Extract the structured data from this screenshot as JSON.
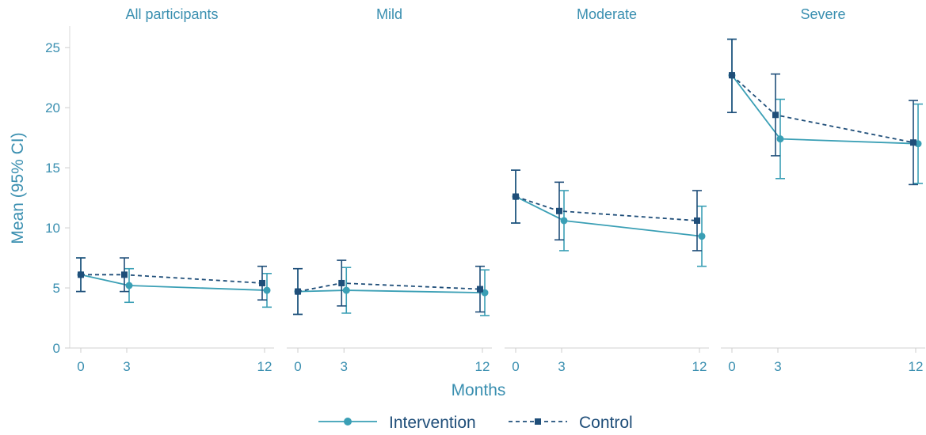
{
  "chart_data": {
    "type": "line",
    "ylabel": "Mean (95% CI)",
    "xlabel": "Months",
    "ylim": [
      0,
      26
    ],
    "yticks": [
      0,
      5,
      10,
      15,
      20,
      25
    ],
    "xticks": [
      0,
      3,
      12
    ],
    "grid": false,
    "legend_placement": "bottom",
    "colors": {
      "Intervention": "#3a9fb5",
      "Control": "#1f4e79",
      "axis_text": "#3a8fb0"
    },
    "series_names": [
      "Intervention",
      "Control"
    ],
    "panels": [
      {
        "title": "All participants",
        "series": [
          {
            "name": "Intervention",
            "x": [
              0,
              3,
              12
            ],
            "values": [
              6.1,
              5.2,
              4.8
            ],
            "ci_low": [
              4.7,
              3.8,
              3.4
            ],
            "ci_high": [
              7.5,
              6.6,
              6.2
            ]
          },
          {
            "name": "Control",
            "x": [
              0,
              3,
              12
            ],
            "values": [
              6.1,
              6.1,
              5.4
            ],
            "ci_low": [
              4.7,
              4.7,
              4.0
            ],
            "ci_high": [
              7.5,
              7.5,
              6.8
            ]
          }
        ]
      },
      {
        "title": "Mild",
        "series": [
          {
            "name": "Intervention",
            "x": [
              0,
              3,
              12
            ],
            "values": [
              4.7,
              4.8,
              4.6
            ],
            "ci_low": [
              2.8,
              2.9,
              2.7
            ],
            "ci_high": [
              6.6,
              6.7,
              6.5
            ]
          },
          {
            "name": "Control",
            "x": [
              0,
              3,
              12
            ],
            "values": [
              4.7,
              5.4,
              4.9
            ],
            "ci_low": [
              2.8,
              3.5,
              3.0
            ],
            "ci_high": [
              6.6,
              7.3,
              6.8
            ]
          }
        ]
      },
      {
        "title": "Moderate",
        "series": [
          {
            "name": "Intervention",
            "x": [
              0,
              3,
              12
            ],
            "values": [
              12.6,
              10.6,
              9.3
            ],
            "ci_low": [
              10.4,
              8.1,
              6.8
            ],
            "ci_high": [
              14.8,
              13.1,
              11.8
            ]
          },
          {
            "name": "Control",
            "x": [
              0,
              3,
              12
            ],
            "values": [
              12.6,
              11.4,
              10.6
            ],
            "ci_low": [
              10.4,
              9.0,
              8.1
            ],
            "ci_high": [
              14.8,
              13.8,
              13.1
            ]
          }
        ]
      },
      {
        "title": "Severe",
        "series": [
          {
            "name": "Intervention",
            "x": [
              0,
              3,
              12
            ],
            "values": [
              22.7,
              17.4,
              17.0
            ],
            "ci_low": [
              19.6,
              14.1,
              13.7
            ],
            "ci_high": [
              25.7,
              20.7,
              20.3
            ]
          },
          {
            "name": "Control",
            "x": [
              0,
              3,
              12
            ],
            "values": [
              22.7,
              19.4,
              17.1
            ],
            "ci_low": [
              19.6,
              16.0,
              13.6
            ],
            "ci_high": [
              25.7,
              22.8,
              20.6
            ]
          }
        ]
      }
    ]
  }
}
